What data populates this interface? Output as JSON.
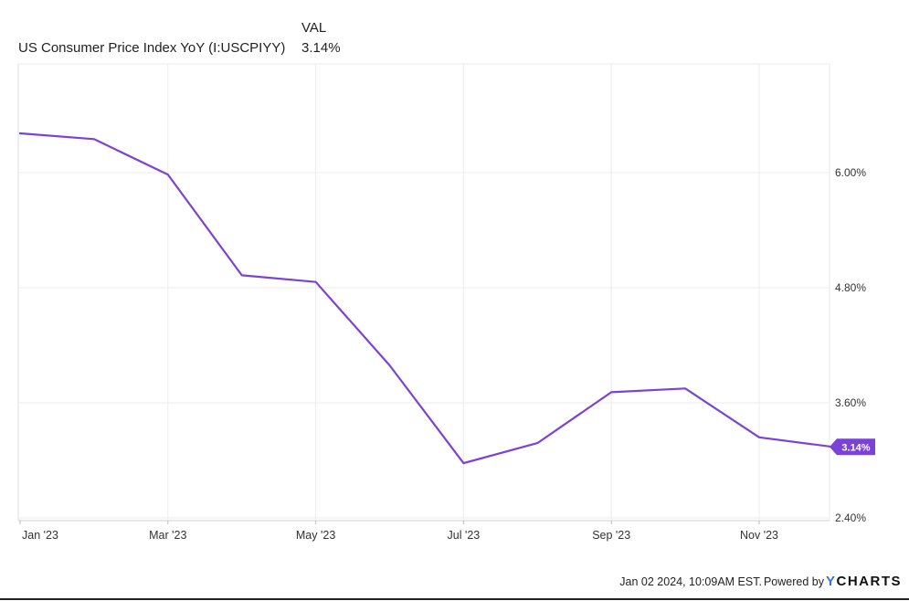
{
  "legend": {
    "column_header": "VAL",
    "series_name": "US Consumer Price Index YoY (I:USCPIYY)",
    "series_value": "3.14%"
  },
  "footer": {
    "timestamp": "Jan 02 2024, 10:09AM EST.",
    "powered_by": "Powered by",
    "brand_y": "Y",
    "brand_rest": "CHARTS"
  },
  "colors": {
    "line": "#7b42d8",
    "badge": "#7b42d8",
    "grid": "#ebebeb",
    "brand_accent": "#3b6fd8"
  },
  "chart_data": {
    "type": "line",
    "series": [
      {
        "name": "US Consumer Price Index YoY (I:USCPIYY)",
        "x": [
          "2023-01",
          "2023-02",
          "2023-03",
          "2023-04",
          "2023-05",
          "2023-06",
          "2023-07",
          "2023-08",
          "2023-09",
          "2023-10",
          "2023-11",
          "2023-12"
        ],
        "values": [
          6.41,
          6.35,
          5.98,
          4.93,
          4.86,
          3.99,
          2.97,
          3.18,
          3.71,
          3.75,
          3.24,
          3.14
        ]
      }
    ],
    "x_ticks": [
      "Jan '23",
      "Mar '23",
      "May '23",
      "Jul '23",
      "Sep '23",
      "Nov '23"
    ],
    "y_ticks": [
      "6.00%",
      "4.80%",
      "3.60%",
      "2.40%"
    ],
    "y_tick_values": [
      6.0,
      4.8,
      3.6,
      2.4
    ],
    "ylim": [
      2.4,
      6.6
    ],
    "last_value_label": "3.14%",
    "grid": true,
    "y_axis_side": "right"
  }
}
